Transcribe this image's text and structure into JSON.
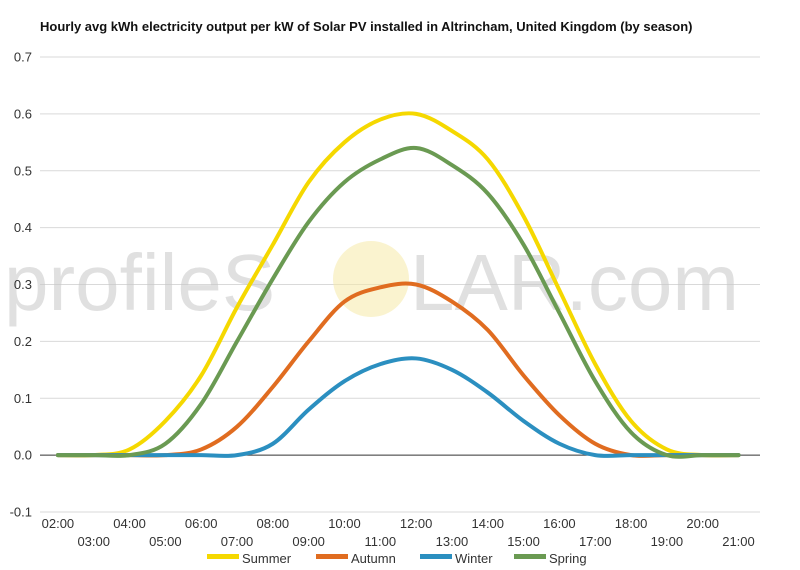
{
  "chart_data": {
    "type": "line",
    "title": "Hourly avg kWh electricity output per kW of Solar PV installed in Altrincham, United Kingdom (by season)",
    "x_tick_labels": [
      "02:00",
      "03:00",
      "04:00",
      "05:00",
      "06:00",
      "07:00",
      "08:00",
      "09:00",
      "10:00",
      "11:00",
      "12:00",
      "13:00",
      "14:00",
      "15:00",
      "16:00",
      "17:00",
      "18:00",
      "19:00",
      "20:00",
      "21:00"
    ],
    "x": [
      2,
      3,
      4,
      5,
      6,
      7,
      8,
      9,
      10,
      11,
      12,
      13,
      14,
      15,
      16,
      17,
      18,
      19,
      20,
      21
    ],
    "xlim": [
      1.5,
      21.6
    ],
    "ylim": [
      -0.1,
      0.7
    ],
    "y_ticks": [
      "-0.1",
      "0.0",
      "0.1",
      "0.2",
      "0.3",
      "0.4",
      "0.5",
      "0.6",
      "0.7"
    ],
    "grid": true,
    "legend_position": "bottom",
    "series": [
      {
        "name": "Summer",
        "color": "#f5d800",
        "values": [
          0.0,
          0.0,
          0.01,
          0.06,
          0.14,
          0.26,
          0.37,
          0.48,
          0.55,
          0.59,
          0.6,
          0.57,
          0.52,
          0.42,
          0.29,
          0.16,
          0.06,
          0.01,
          0.0,
          0.0
        ]
      },
      {
        "name": "Autumn",
        "color": "#e06c20",
        "values": [
          0.0,
          0.0,
          0.0,
          0.0,
          0.01,
          0.05,
          0.12,
          0.2,
          0.27,
          0.295,
          0.3,
          0.27,
          0.22,
          0.14,
          0.07,
          0.02,
          0.0,
          0.0,
          0.0,
          0.0
        ]
      },
      {
        "name": "Winter",
        "color": "#2b8fc0",
        "values": [
          0.0,
          0.0,
          0.0,
          0.0,
          0.0,
          0.0,
          0.02,
          0.08,
          0.13,
          0.16,
          0.17,
          0.15,
          0.11,
          0.06,
          0.02,
          0.0,
          0.0,
          0.0,
          0.0,
          0.0
        ]
      },
      {
        "name": "Spring",
        "color": "#6a9a52",
        "values": [
          0.0,
          0.0,
          0.0,
          0.02,
          0.09,
          0.2,
          0.31,
          0.41,
          0.48,
          0.52,
          0.54,
          0.51,
          0.46,
          0.37,
          0.25,
          0.13,
          0.04,
          0.0,
          0.0,
          0.0
        ]
      }
    ]
  },
  "watermark": {
    "text_left": "profileS",
    "text_right": "LAR.com",
    "sun_color": "#f6e9a8"
  }
}
